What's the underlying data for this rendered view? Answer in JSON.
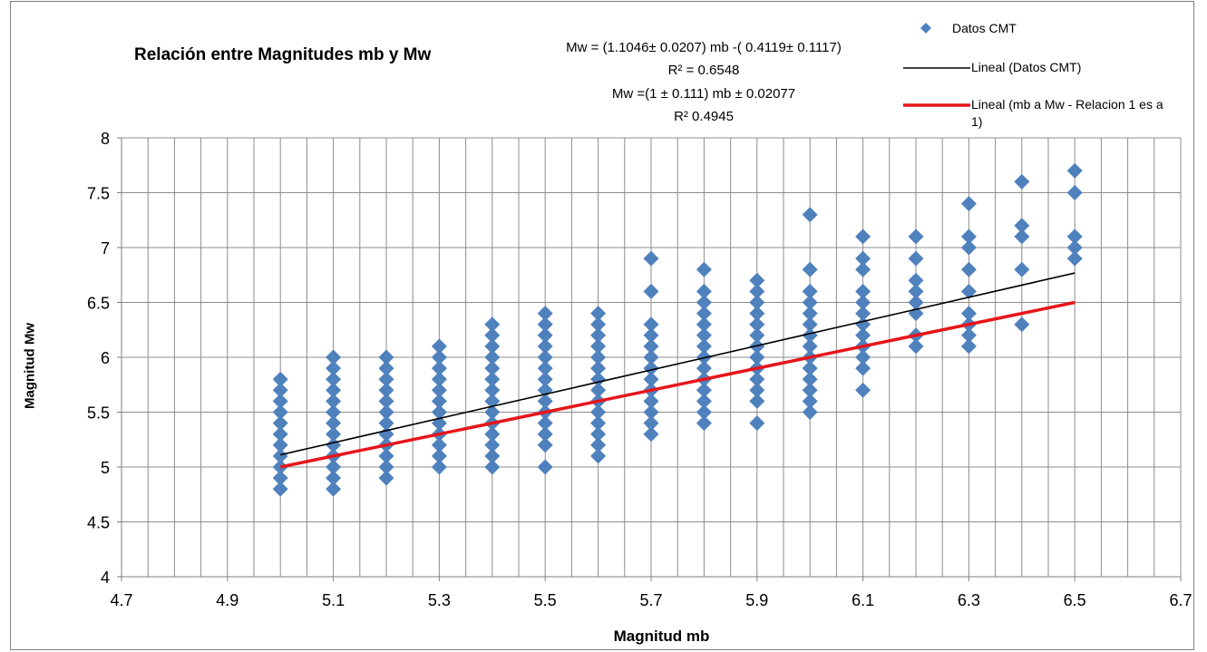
{
  "chart_data": {
    "type": "scatter",
    "title": "Relación entre Magnitudes mb y Mw",
    "xlabel": "Magnitud mb",
    "ylabel": "Magnitud  Mw",
    "xlim": [
      4.7,
      6.7
    ],
    "ylim": [
      4,
      8
    ],
    "x_ticks": [
      "4.7",
      "4.9",
      "5.1",
      "5.3",
      "5.5",
      "5.7",
      "5.9",
      "6.1",
      "6.3",
      "6.5",
      "6.7"
    ],
    "y_ticks": [
      "4",
      "4.5",
      "5",
      "5.5",
      "6",
      "6.5",
      "7",
      "7.5",
      "8"
    ],
    "grid": true,
    "legend_position": "top-right",
    "annotations": [
      "Mw = (1.1046± 0.0207) mb -( 0.4119± 0.1117)",
      "R² = 0.6548",
      "Mw =(1 ± 0.111) mb  ± 0.02077",
      "R² 0.4945"
    ],
    "series": [
      {
        "name": "Datos CMT",
        "type": "scatter",
        "color": "#4F81BD",
        "points": [
          [
            5.0,
            4.8
          ],
          [
            5.0,
            4.9
          ],
          [
            5.0,
            5.0
          ],
          [
            5.0,
            5.1
          ],
          [
            5.0,
            5.2
          ],
          [
            5.0,
            5.3
          ],
          [
            5.0,
            5.4
          ],
          [
            5.0,
            5.5
          ],
          [
            5.0,
            5.6
          ],
          [
            5.0,
            5.7
          ],
          [
            5.0,
            5.8
          ],
          [
            5.1,
            4.8
          ],
          [
            5.1,
            4.9
          ],
          [
            5.1,
            5.0
          ],
          [
            5.1,
            5.1
          ],
          [
            5.1,
            5.2
          ],
          [
            5.1,
            5.3
          ],
          [
            5.1,
            5.4
          ],
          [
            5.1,
            5.5
          ],
          [
            5.1,
            5.6
          ],
          [
            5.1,
            5.7
          ],
          [
            5.1,
            5.8
          ],
          [
            5.1,
            5.9
          ],
          [
            5.1,
            6.0
          ],
          [
            5.2,
            4.9
          ],
          [
            5.2,
            5.0
          ],
          [
            5.2,
            5.1
          ],
          [
            5.2,
            5.2
          ],
          [
            5.2,
            5.3
          ],
          [
            5.2,
            5.4
          ],
          [
            5.2,
            5.5
          ],
          [
            5.2,
            5.6
          ],
          [
            5.2,
            5.7
          ],
          [
            5.2,
            5.8
          ],
          [
            5.2,
            5.9
          ],
          [
            5.2,
            6.0
          ],
          [
            5.3,
            5.0
          ],
          [
            5.3,
            5.1
          ],
          [
            5.3,
            5.2
          ],
          [
            5.3,
            5.3
          ],
          [
            5.3,
            5.4
          ],
          [
            5.3,
            5.5
          ],
          [
            5.3,
            5.6
          ],
          [
            5.3,
            5.7
          ],
          [
            5.3,
            5.8
          ],
          [
            5.3,
            5.9
          ],
          [
            5.3,
            6.0
          ],
          [
            5.3,
            6.1
          ],
          [
            5.4,
            5.0
          ],
          [
            5.4,
            5.1
          ],
          [
            5.4,
            5.2
          ],
          [
            5.4,
            5.3
          ],
          [
            5.4,
            5.4
          ],
          [
            5.4,
            5.5
          ],
          [
            5.4,
            5.6
          ],
          [
            5.4,
            5.7
          ],
          [
            5.4,
            5.8
          ],
          [
            5.4,
            5.9
          ],
          [
            5.4,
            6.0
          ],
          [
            5.4,
            6.1
          ],
          [
            5.4,
            6.2
          ],
          [
            5.4,
            6.3
          ],
          [
            5.5,
            5.0
          ],
          [
            5.5,
            5.2
          ],
          [
            5.5,
            5.3
          ],
          [
            5.5,
            5.4
          ],
          [
            5.5,
            5.5
          ],
          [
            5.5,
            5.6
          ],
          [
            5.5,
            5.7
          ],
          [
            5.5,
            5.8
          ],
          [
            5.5,
            5.9
          ],
          [
            5.5,
            6.0
          ],
          [
            5.5,
            6.1
          ],
          [
            5.5,
            6.2
          ],
          [
            5.5,
            6.3
          ],
          [
            5.5,
            6.4
          ],
          [
            5.6,
            5.1
          ],
          [
            5.6,
            5.2
          ],
          [
            5.6,
            5.3
          ],
          [
            5.6,
            5.4
          ],
          [
            5.6,
            5.5
          ],
          [
            5.6,
            5.6
          ],
          [
            5.6,
            5.7
          ],
          [
            5.6,
            5.8
          ],
          [
            5.6,
            5.9
          ],
          [
            5.6,
            6.0
          ],
          [
            5.6,
            6.1
          ],
          [
            5.6,
            6.2
          ],
          [
            5.6,
            6.3
          ],
          [
            5.6,
            6.4
          ],
          [
            5.7,
            5.3
          ],
          [
            5.7,
            5.4
          ],
          [
            5.7,
            5.5
          ],
          [
            5.7,
            5.6
          ],
          [
            5.7,
            5.7
          ],
          [
            5.7,
            5.8
          ],
          [
            5.7,
            5.9
          ],
          [
            5.7,
            6.0
          ],
          [
            5.7,
            6.1
          ],
          [
            5.7,
            6.2
          ],
          [
            5.7,
            6.3
          ],
          [
            5.7,
            6.6
          ],
          [
            5.7,
            6.9
          ],
          [
            5.8,
            5.4
          ],
          [
            5.8,
            5.5
          ],
          [
            5.8,
            5.6
          ],
          [
            5.8,
            5.7
          ],
          [
            5.8,
            5.8
          ],
          [
            5.8,
            5.9
          ],
          [
            5.8,
            6.0
          ],
          [
            5.8,
            6.1
          ],
          [
            5.8,
            6.2
          ],
          [
            5.8,
            6.3
          ],
          [
            5.8,
            6.4
          ],
          [
            5.8,
            6.5
          ],
          [
            5.8,
            6.6
          ],
          [
            5.8,
            6.8
          ],
          [
            5.9,
            5.4
          ],
          [
            5.9,
            5.6
          ],
          [
            5.9,
            5.7
          ],
          [
            5.9,
            5.8
          ],
          [
            5.9,
            5.9
          ],
          [
            5.9,
            6.0
          ],
          [
            5.9,
            6.1
          ],
          [
            5.9,
            6.2
          ],
          [
            5.9,
            6.3
          ],
          [
            5.9,
            6.4
          ],
          [
            5.9,
            6.5
          ],
          [
            5.9,
            6.6
          ],
          [
            5.9,
            6.7
          ],
          [
            6.0,
            5.5
          ],
          [
            6.0,
            5.6
          ],
          [
            6.0,
            5.7
          ],
          [
            6.0,
            5.8
          ],
          [
            6.0,
            5.9
          ],
          [
            6.0,
            6.0
          ],
          [
            6.0,
            6.1
          ],
          [
            6.0,
            6.2
          ],
          [
            6.0,
            6.3
          ],
          [
            6.0,
            6.4
          ],
          [
            6.0,
            6.5
          ],
          [
            6.0,
            6.6
          ],
          [
            6.0,
            6.8
          ],
          [
            6.0,
            7.3
          ],
          [
            6.1,
            5.7
          ],
          [
            6.1,
            5.9
          ],
          [
            6.1,
            6.0
          ],
          [
            6.1,
            6.1
          ],
          [
            6.1,
            6.2
          ],
          [
            6.1,
            6.3
          ],
          [
            6.1,
            6.4
          ],
          [
            6.1,
            6.5
          ],
          [
            6.1,
            6.6
          ],
          [
            6.1,
            6.8
          ],
          [
            6.1,
            6.9
          ],
          [
            6.1,
            7.1
          ],
          [
            6.2,
            6.1
          ],
          [
            6.2,
            6.2
          ],
          [
            6.2,
            6.4
          ],
          [
            6.2,
            6.5
          ],
          [
            6.2,
            6.6
          ],
          [
            6.2,
            6.7
          ],
          [
            6.2,
            6.9
          ],
          [
            6.2,
            7.1
          ],
          [
            6.3,
            6.1
          ],
          [
            6.3,
            6.2
          ],
          [
            6.3,
            6.3
          ],
          [
            6.3,
            6.4
          ],
          [
            6.3,
            6.6
          ],
          [
            6.3,
            6.8
          ],
          [
            6.3,
            7.0
          ],
          [
            6.3,
            7.1
          ],
          [
            6.3,
            7.4
          ],
          [
            6.4,
            6.3
          ],
          [
            6.4,
            6.8
          ],
          [
            6.4,
            7.1
          ],
          [
            6.4,
            7.2
          ],
          [
            6.4,
            7.6
          ],
          [
            6.5,
            6.9
          ],
          [
            6.5,
            7.0
          ],
          [
            6.5,
            7.1
          ],
          [
            6.5,
            7.5
          ],
          [
            6.5,
            7.7
          ]
        ]
      },
      {
        "name": "Lineal (Datos CMT)",
        "type": "line",
        "color": "#000000",
        "x": [
          5.0,
          6.5
        ],
        "y": [
          5.1111,
          6.768
        ]
      },
      {
        "name": "Lineal (mb a Mw - Relacion 1 es a 1)",
        "type": "line",
        "color": "#E8151B",
        "x": [
          5.0,
          6.5
        ],
        "y": [
          5.0,
          6.5
        ]
      }
    ]
  }
}
